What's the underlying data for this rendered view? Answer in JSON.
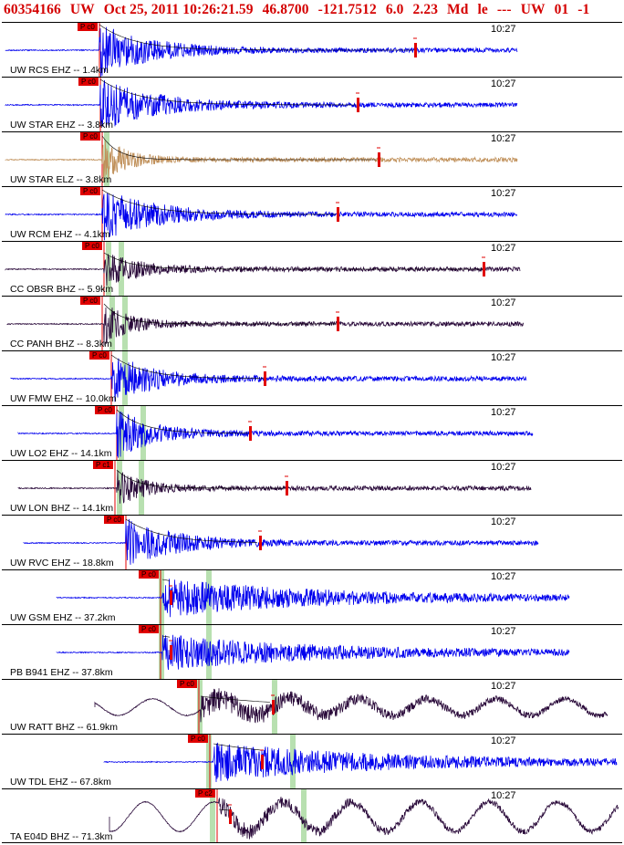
{
  "header": {
    "event_id": "60354166",
    "network": "UW",
    "datetime": "Oct 25, 2011 10:26:21.59",
    "latitude": "46.8700",
    "longitude": "-121.7512",
    "depth": "6.0",
    "magnitude": "2.23",
    "mag_type": "Md",
    "event_type": "le",
    "separator": "---",
    "source": "UW",
    "version": "01",
    "suffix": "-1"
  },
  "colors": {
    "title": "#d40000",
    "trace_blue": "#0000ee",
    "trace_dark": "#2a0a3a",
    "trace_tan": "#c0905a",
    "pick_red": "#e00000",
    "s_window_green": "#b8e0b0"
  },
  "panels": [
    {
      "station": "UW RCS EHZ -- 1.4km",
      "time": "10:27",
      "pick": "P c0",
      "color": "blue",
      "pickx": 107,
      "cx": 107,
      "amp": 28,
      "decay": 55,
      "end": 565,
      "coda": 453,
      "green": [],
      "lowfreq": 0,
      "start": 4
    },
    {
      "station": "UW STAR EHZ -- 3.8km",
      "time": "10:27",
      "pick": "P c0",
      "color": "blue",
      "pickx": 108,
      "cx": 108,
      "amp": 28,
      "decay": 60,
      "end": 565,
      "coda": 390,
      "green": [],
      "lowfreq": 0,
      "start": 4
    },
    {
      "station": "UW STAR ELZ -- 3.8km",
      "time": "10:27",
      "pick": "P c0",
      "color": "tan",
      "pickx": 110,
      "cx": 110,
      "amp": 26,
      "decay": 25,
      "end": 565,
      "coda": 413,
      "green": [
        [
          112,
          118
        ]
      ],
      "lowfreq": 0,
      "start": 4
    },
    {
      "station": "UW RCM EHZ -- 4.1km",
      "time": "10:27",
      "pick": "P c0",
      "color": "blue",
      "pickx": 110,
      "cx": 110,
      "amp": 27,
      "decay": 60,
      "end": 565,
      "coda": 368,
      "green": [],
      "lowfreq": 0,
      "start": 4
    },
    {
      "station": "CC OBSR BHZ -- 5.9km",
      "time": "10:27",
      "pick": "P c0",
      "color": "dark",
      "pickx": 112,
      "cx": 112,
      "amp": 18,
      "decay": 40,
      "end": 568,
      "coda": 528,
      "green": [
        [
          114,
          120
        ],
        [
          128,
          134
        ]
      ],
      "lowfreq": 0,
      "start": 4
    },
    {
      "station": "CC PANH BHZ -- 8.3km",
      "time": "10:27",
      "pick": "P c0",
      "color": "dark",
      "pickx": 110,
      "cx": 112,
      "amp": 22,
      "decay": 28,
      "end": 572,
      "coda": 368,
      "green": [
        [
          118,
          124
        ],
        [
          132,
          138
        ]
      ],
      "lowfreq": 0,
      "start": 6
    },
    {
      "station": "UW FMW EHZ -- 10.0km",
      "time": "10:27",
      "pick": "P c0",
      "color": "blue",
      "pickx": 120,
      "cx": 120,
      "amp": 26,
      "decay": 50,
      "end": 575,
      "coda": 288,
      "green": [
        [
          132,
          138
        ]
      ],
      "lowfreq": 0,
      "start": 10
    },
    {
      "station": "UW LO2 EHZ -- 14.1km",
      "time": "10:27",
      "pick": "P c0",
      "color": "blue",
      "pickx": 126,
      "cx": 126,
      "amp": 26,
      "decay": 40,
      "end": 582,
      "coda": 272,
      "green": [
        [
          128,
          134
        ],
        [
          152,
          158
        ]
      ],
      "lowfreq": 0,
      "start": 18
    },
    {
      "station": "UW LON BHZ -- 14.1km",
      "time": "10:27",
      "pick": "P c1",
      "color": "dark",
      "pickx": 124,
      "cx": 126,
      "amp": 20,
      "decay": 30,
      "end": 580,
      "coda": 312,
      "green": [
        [
          126,
          132
        ],
        [
          150,
          156
        ]
      ],
      "lowfreq": 0,
      "start": 18
    },
    {
      "station": "UW RVC EHZ -- 18.8km",
      "time": "10:27",
      "pick": "P c0",
      "color": "blue",
      "pickx": 136,
      "cx": 136,
      "amp": 26,
      "decay": 55,
      "end": 588,
      "coda": 283,
      "green": [],
      "lowfreq": 0,
      "start": 24
    },
    {
      "station": "UW GSM EHZ -- 37.2km",
      "time": "10:27",
      "pick": "P c0",
      "color": "blue",
      "pickx": 174,
      "cx": 176,
      "amp": 20,
      "decay": 160,
      "end": 622,
      "coda": 185,
      "green": [
        [
          172,
          178
        ],
        [
          224,
          230
        ]
      ],
      "lowfreq": 0,
      "start": 60
    },
    {
      "station": "PB B941 EHZ -- 37.8km",
      "time": "10:27",
      "pick": "P c0",
      "color": "blue",
      "pickx": 174,
      "cx": 176,
      "amp": 18,
      "decay": 160,
      "end": 622,
      "coda": 185,
      "green": [
        [
          172,
          178
        ],
        [
          224,
          230
        ]
      ],
      "lowfreq": 0,
      "start": 60
    },
    {
      "station": "UW RATT BHZ -- 61.9km",
      "time": "10:27",
      "pick": "P c0",
      "color": "dark",
      "pickx": 216,
      "cx": 218,
      "amp": 12,
      "decay": 140,
      "end": 664,
      "coda": 297,
      "green": [
        [
          214,
          220
        ],
        [
          296,
          302
        ]
      ],
      "lowfreq": 10,
      "start": 102
    },
    {
      "station": "UW TDL EHZ -- 67.8km",
      "time": "10:27",
      "pick": "P c0",
      "color": "blue",
      "pickx": 228,
      "cx": 232,
      "amp": 20,
      "decay": 170,
      "end": 674,
      "coda": 285,
      "green": [
        [
          224,
          230
        ],
        [
          316,
          322
        ]
      ],
      "lowfreq": 0,
      "start": 112
    },
    {
      "station": "TA E04D BHZ -- 71.3km",
      "time": "10:27",
      "pick": "P c2",
      "color": "dark",
      "pickx": 236,
      "cx": 238,
      "amp": 8,
      "decay": 120,
      "end": 676,
      "coda": 250,
      "green": [
        [
          228,
          234
        ],
        [
          328,
          334
        ]
      ],
      "lowfreq": 18,
      "start": 118
    }
  ]
}
